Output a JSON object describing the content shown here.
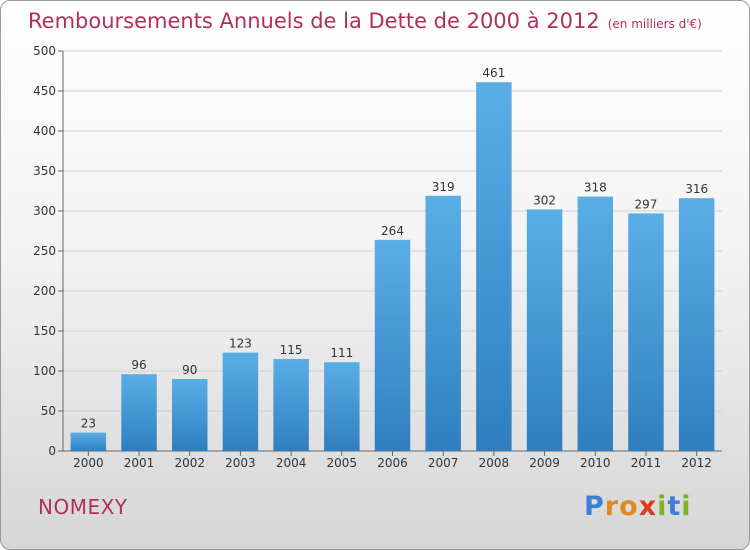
{
  "header": {
    "title": "Remboursements Annuels de la Dette de 2000 à 2012",
    "unit": "(en milliers d'€)"
  },
  "footer": {
    "town": "NOMEXY",
    "logo": "Proxiti"
  },
  "colors": {
    "title": "#b0305a",
    "bar_top": "#5aaee6",
    "bar_bottom": "#2f7fc0",
    "logo_letters": [
      "#3b7fd4",
      "#e08a1e",
      "#e08a1e",
      "#e0391e",
      "#7bb32e",
      "#3b7fd4",
      "#7bb32e"
    ]
  },
  "chart_data": {
    "type": "bar",
    "title": "Remboursements Annuels de la Dette de 2000 à 2012",
    "subtitle": "(en milliers d'€)",
    "xlabel": "",
    "ylabel": "",
    "categories": [
      "2000",
      "2001",
      "2002",
      "2003",
      "2004",
      "2005",
      "2006",
      "2007",
      "2008",
      "2009",
      "2010",
      "2011",
      "2012"
    ],
    "values": [
      23,
      96,
      90,
      123,
      115,
      111,
      264,
      319,
      461,
      302,
      318,
      297,
      316
    ],
    "ylim": [
      0,
      500
    ],
    "yticks": [
      0,
      50,
      100,
      150,
      200,
      250,
      300,
      350,
      400,
      450,
      500
    ],
    "grid": true,
    "legend": "none"
  }
}
